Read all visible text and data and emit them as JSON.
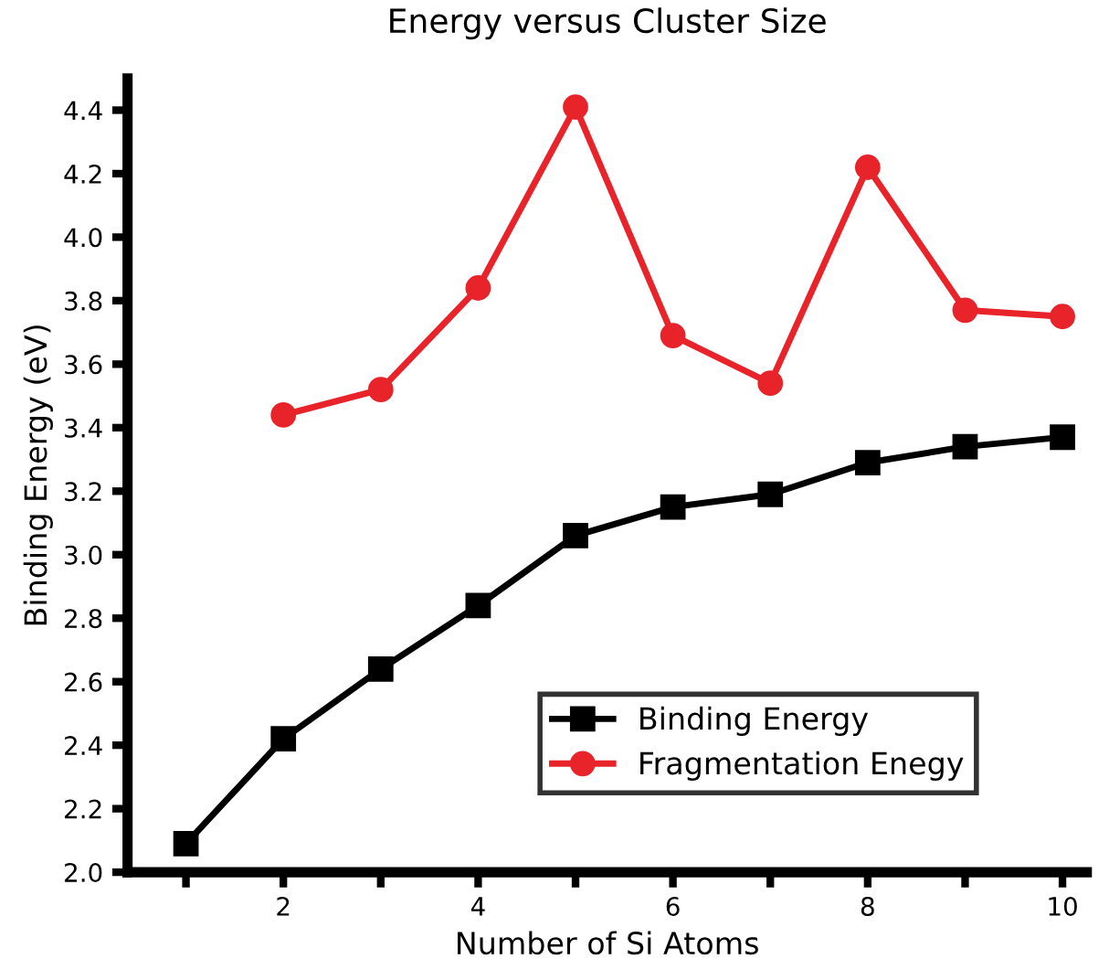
{
  "chart_data": {
    "type": "line",
    "title": "Energy versus Cluster Size",
    "xlabel": "Number of Si Atoms",
    "ylabel": "Binding Energy (eV)",
    "series": [
      {
        "name": "Binding Energy",
        "color": "#000000",
        "marker": "square",
        "x": [
          1,
          2,
          3,
          4,
          5,
          6,
          7,
          8,
          9,
          10
        ],
        "values": [
          2.09,
          2.42,
          2.64,
          2.84,
          3.06,
          3.15,
          3.19,
          3.29,
          3.34,
          3.37
        ]
      },
      {
        "name": "Fragmentation Enegy",
        "color": "#e8232a",
        "marker": "circle",
        "x": [
          2,
          3,
          4,
          5,
          6,
          7,
          8,
          9,
          10
        ],
        "values": [
          3.44,
          3.52,
          3.84,
          4.41,
          3.69,
          3.54,
          4.22,
          3.77,
          3.75
        ]
      }
    ],
    "xlim": [
      0.4,
      10.25
    ],
    "ylim": [
      2.0,
      4.5
    ],
    "xticks": [
      {
        "value": 1,
        "label": null
      },
      2,
      {
        "value": 3,
        "label": null
      },
      4,
      {
        "value": 5,
        "label": null
      },
      6,
      {
        "value": 7,
        "label": null
      },
      8,
      {
        "value": 9,
        "label": null
      },
      10
    ],
    "yticks": [
      {
        "value": 2.0,
        "label": "2.0"
      },
      2.2,
      2.4,
      2.6,
      2.8,
      {
        "value": 3.0,
        "label": "3.0"
      },
      3.2,
      3.4,
      3.6,
      3.8,
      {
        "value": 4.0,
        "label": "4.0"
      },
      4.2,
      4.4
    ],
    "legend": "bottom right",
    "grid": false,
    "line_style": "solid"
  }
}
